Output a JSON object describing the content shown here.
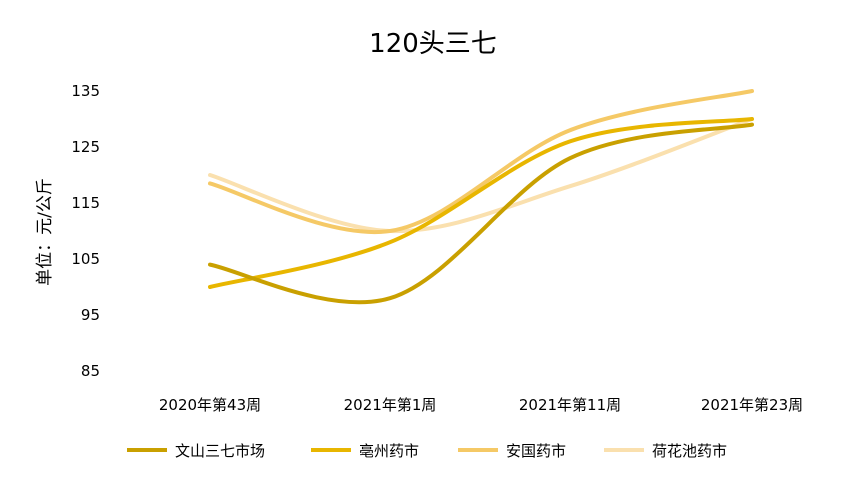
{
  "chart_data": {
    "type": "line",
    "title": "120头三七",
    "ylabel": "单位：元/公斤",
    "xlabel": "",
    "categories": [
      "2020年第43周",
      "2021年第1周",
      "2021年第11周",
      "2021年第23周"
    ],
    "ylim": [
      85,
      135
    ],
    "yticks": [
      85,
      95,
      105,
      115,
      125,
      135
    ],
    "grid": false,
    "legend_position": "bottom",
    "series": [
      {
        "name": "文山三七市场",
        "color": "#C9A000",
        "values": [
          104,
          98,
          123,
          129
        ]
      },
      {
        "name": "亳州药市",
        "color": "#E8B600",
        "values": [
          100,
          108,
          126,
          130
        ]
      },
      {
        "name": "安国药市",
        "color": "#F5C966",
        "values": [
          118.5,
          110,
          128,
          135
        ]
      },
      {
        "name": "荷花池药市",
        "color": "#FAE0AE",
        "values": [
          120,
          110,
          118,
          130
        ]
      }
    ]
  }
}
